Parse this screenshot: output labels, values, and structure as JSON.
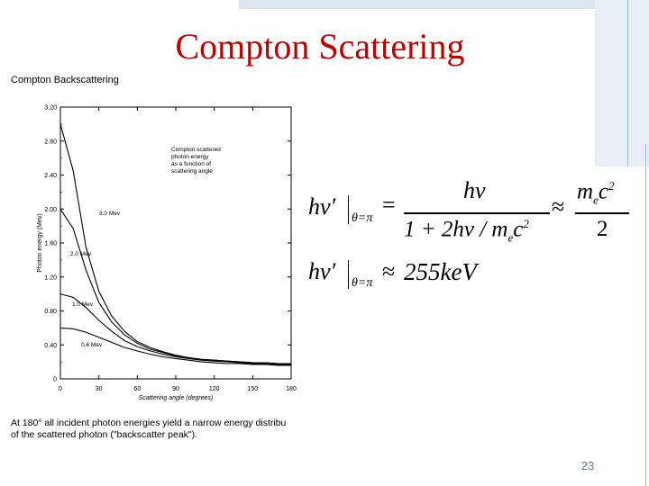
{
  "slide": {
    "title": "Compton Scattering",
    "figure_label": "Compton Backscattering",
    "caption": "At 180° all incident photon energies yield a narrow energy distribu\nof the scattered photon (\"backscatter peak\").",
    "page_number": "23",
    "accent_color": "#c00000"
  },
  "equations": {
    "lhs1": "hν′",
    "cond1": "θ=π",
    "eq": "=",
    "num": "hν",
    "den": "1 + 2hν / m",
    "den_sub": "e",
    "den_c": "c",
    "den_sup": "2",
    "approx": "≈",
    "rnum": "m",
    "rnum_sub": "e",
    "rnum_c": "c",
    "rnum_sup": "2",
    "rden": "2",
    "lhs2": "hν′",
    "cond2": "θ=π",
    "approx2": "≈",
    "val2": "255keV"
  },
  "chart_data": {
    "type": "line",
    "title": "",
    "annotation": [
      "Compton scattered",
      "photon energy",
      "as a function of",
      "scattering angle"
    ],
    "xlabel": "Scattering angle (degrees)",
    "ylabel": "Photon energy (Mev)",
    "xlim": [
      0,
      180
    ],
    "ylim": [
      0,
      3.2
    ],
    "xticks": [
      0,
      30,
      60,
      90,
      120,
      150,
      180
    ],
    "yticks": [
      0,
      0.4,
      0.8,
      1.2,
      1.6,
      2.0,
      2.4,
      2.8,
      3.2
    ],
    "ytick_labels": [
      "0",
      "0.40",
      "0.80",
      "1.20",
      "1.60",
      "2.00",
      "2.40",
      "2.80",
      "3.20"
    ],
    "x": [
      0,
      10,
      20,
      30,
      40,
      50,
      60,
      70,
      80,
      90,
      100,
      110,
      120,
      130,
      140,
      150,
      160,
      170,
      180
    ],
    "series": [
      {
        "name": "3.0 Mev",
        "values": [
          3.0,
          2.45,
          1.55,
          1.03,
          0.74,
          0.56,
          0.44,
          0.37,
          0.32,
          0.28,
          0.25,
          0.23,
          0.22,
          0.21,
          0.2,
          0.19,
          0.19,
          0.18,
          0.18
        ]
      },
      {
        "name": "2.0 Mev",
        "values": [
          2.0,
          1.77,
          1.28,
          0.9,
          0.67,
          0.52,
          0.42,
          0.35,
          0.31,
          0.27,
          0.25,
          0.23,
          0.22,
          0.21,
          0.2,
          0.19,
          0.19,
          0.18,
          0.18
        ]
      },
      {
        "name": "1.0 Mev",
        "values": [
          1.0,
          0.96,
          0.84,
          0.69,
          0.56,
          0.45,
          0.38,
          0.33,
          0.29,
          0.26,
          0.24,
          0.22,
          0.21,
          0.2,
          0.19,
          0.18,
          0.18,
          0.17,
          0.17
        ]
      },
      {
        "name": "0.6 Mev",
        "values": [
          0.6,
          0.59,
          0.55,
          0.49,
          0.43,
          0.37,
          0.33,
          0.29,
          0.26,
          0.24,
          0.22,
          0.2,
          0.19,
          0.18,
          0.18,
          0.17,
          0.17,
          0.16,
          0.16
        ]
      }
    ],
    "grid": false
  }
}
